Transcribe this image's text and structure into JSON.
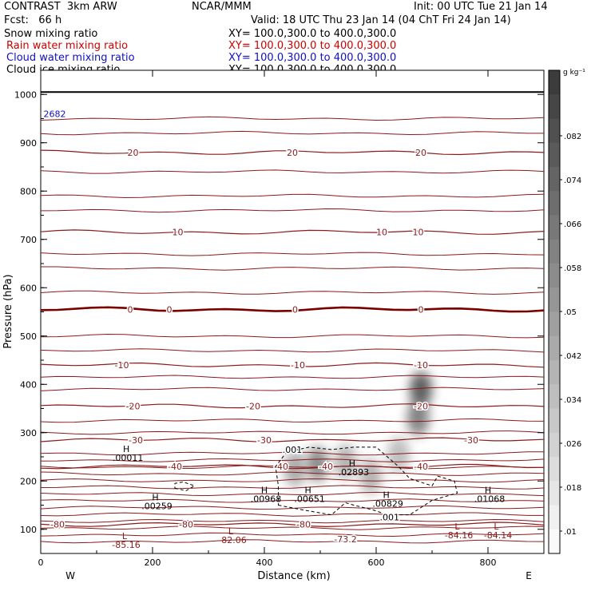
{
  "header": {
    "model": "CONTRAST  3km ARW",
    "org": "NCAR/MMM",
    "init": "Init: 00 UTC Tue 21 Jan 14",
    "fcst": "Fcst:   66 h",
    "valid": "Valid: 18 UTC Thu 23 Jan 14 (04 ChT Fri 24 Jan 14)"
  },
  "fields": [
    {
      "name": "Snow mixing ratio",
      "xy": "XY= 100.0,300.0 to 400.0,300.0",
      "color": "#000000"
    },
    {
      "name": "Rain water mixing ratio",
      "xy": "XY= 100.0,300.0 to 400.0,300.0",
      "color": "#d00000"
    },
    {
      "name": "Cloud water mixing ratio",
      "xy": "XY= 100.0,300.0 to 400.0,300.0",
      "color": "#1010c0"
    },
    {
      "name": "Cloud ice mixing ratio",
      "xy": "XY= 100.0,300.0 to 400.0,300.0",
      "color": "#000000"
    }
  ],
  "chart_data": {
    "type": "heatmap",
    "xlabel": "Distance (km)",
    "ylabel": "Pressure (hPa)",
    "xlim": [
      0,
      900
    ],
    "ylim": [
      1050,
      50
    ],
    "xticks": [
      "0",
      "200",
      "400",
      "600",
      "800"
    ],
    "yticks": [
      "100",
      "200",
      "300",
      "400",
      "500",
      "600",
      "700",
      "800",
      "900",
      "1000"
    ],
    "left_end": "W",
    "right_end": "E",
    "colorbar": {
      "unit": "g kg⁻¹",
      "labels": [
        "0.082",
        ".074",
        ".066",
        ".058",
        ".05",
        ".042",
        ".034",
        ".026",
        ".018",
        ".01"
      ],
      "label_text": [
        ".082",
        ".074",
        ".066",
        ".058",
        ".05",
        ".042",
        ".034",
        ".026",
        ".018",
        ".01"
      ]
    },
    "snow_shading": [
      {
        "x": 455,
        "p": 225,
        "intensity": 0.35
      },
      {
        "x": 495,
        "p": 235,
        "intensity": 0.5
      },
      {
        "x": 545,
        "p": 240,
        "intensity": 0.3
      },
      {
        "x": 590,
        "p": 210,
        "intensity": 0.3
      },
      {
        "x": 640,
        "p": 255,
        "intensity": 0.25
      },
      {
        "x": 675,
        "p": 330,
        "intensity": 0.55
      },
      {
        "x": 680,
        "p": 390,
        "intensity": 0.75
      }
    ],
    "temperature_contours": [
      {
        "level": -80,
        "p": 110,
        "labels": [
          {
            "x": 30,
            "text": "-80"
          },
          {
            "x": 260,
            "text": "-80"
          },
          {
            "x": 470,
            "text": "-80"
          }
        ]
      },
      {
        "level": -40,
        "p": 230,
        "labels": [
          {
            "x": 240,
            "text": "-40"
          },
          {
            "x": 430,
            "text": "-40"
          },
          {
            "x": 510,
            "text": "-40"
          },
          {
            "x": 680,
            "text": "-40"
          }
        ]
      },
      {
        "level": -30,
        "p": 285,
        "labels": [
          {
            "x": 170,
            "text": "-30"
          },
          {
            "x": 400,
            "text": "-30"
          },
          {
            "x": 770,
            "text": "-30"
          }
        ]
      },
      {
        "level": -20,
        "p": 355,
        "labels": [
          {
            "x": 165,
            "text": "-20"
          },
          {
            "x": 380,
            "text": "-20"
          },
          {
            "x": 680,
            "text": "-20"
          }
        ]
      },
      {
        "level": -10,
        "p": 440,
        "labels": [
          {
            "x": 145,
            "text": "-10"
          },
          {
            "x": 460,
            "text": "-10"
          },
          {
            "x": 680,
            "text": "-10"
          }
        ]
      },
      {
        "level": 0,
        "p": 555,
        "labels": [
          {
            "x": 160,
            "text": "0"
          },
          {
            "x": 230,
            "text": "0"
          },
          {
            "x": 455,
            "text": "0"
          },
          {
            "x": 680,
            "text": "0"
          }
        ]
      },
      {
        "level": 10,
        "p": 715,
        "labels": [
          {
            "x": 245,
            "text": "10"
          },
          {
            "x": 610,
            "text": "10"
          },
          {
            "x": 675,
            "text": "10"
          }
        ]
      },
      {
        "level": 20,
        "p": 880,
        "labels": [
          {
            "x": 165,
            "text": "20"
          },
          {
            "x": 450,
            "text": "20"
          },
          {
            "x": 680,
            "text": "20"
          }
        ]
      }
    ],
    "extrema": [
      {
        "kind": "L",
        "x": 150,
        "p": 80,
        "value": "-85.16"
      },
      {
        "kind": "L",
        "x": 340,
        "p": 90,
        "value": "-82.06"
      },
      {
        "kind": "L",
        "x": 745,
        "p": 100,
        "value": "-84.16"
      },
      {
        "kind": "L",
        "x": 815,
        "p": 100,
        "value": "-84.14"
      },
      {
        "kind": "H",
        "x": 205,
        "p": 160,
        "value": ".00259"
      },
      {
        "kind": "H",
        "x": 400,
        "p": 175,
        "value": ".00968"
      },
      {
        "kind": "H",
        "x": 478,
        "p": 175,
        "value": ".00651"
      },
      {
        "kind": "H",
        "x": 618,
        "p": 165,
        "value": ".00829"
      },
      {
        "kind": "H",
        "x": 800,
        "p": 175,
        "value": ".01068"
      },
      {
        "kind": "H",
        "x": 153,
        "p": 260,
        "value": ".00011"
      },
      {
        "kind": "H",
        "x": 557,
        "p": 230,
        "value": ".02893"
      }
    ],
    "annotations": [
      {
        "x": 545,
        "p": 80,
        "text": "-73.2"
      },
      {
        "x": 624,
        "p": 125,
        "text": ".001"
      },
      {
        "x": 450,
        "p": 265,
        "text": ".001"
      },
      {
        "x": 5,
        "p": 960,
        "text": "2682"
      }
    ]
  }
}
